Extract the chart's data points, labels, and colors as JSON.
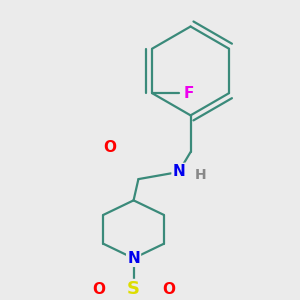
{
  "bg_color": "#ebebeb",
  "bond_color": "#3a8a7a",
  "bond_width": 1.6,
  "atom_colors": {
    "O": "#ff0000",
    "N": "#0000ee",
    "S": "#dddd00",
    "F": "#ee00ee",
    "H": "#888888",
    "C": "#3a8a7a"
  },
  "font_size_atom": 11,
  "font_size_H": 10,
  "font_size_S": 13
}
